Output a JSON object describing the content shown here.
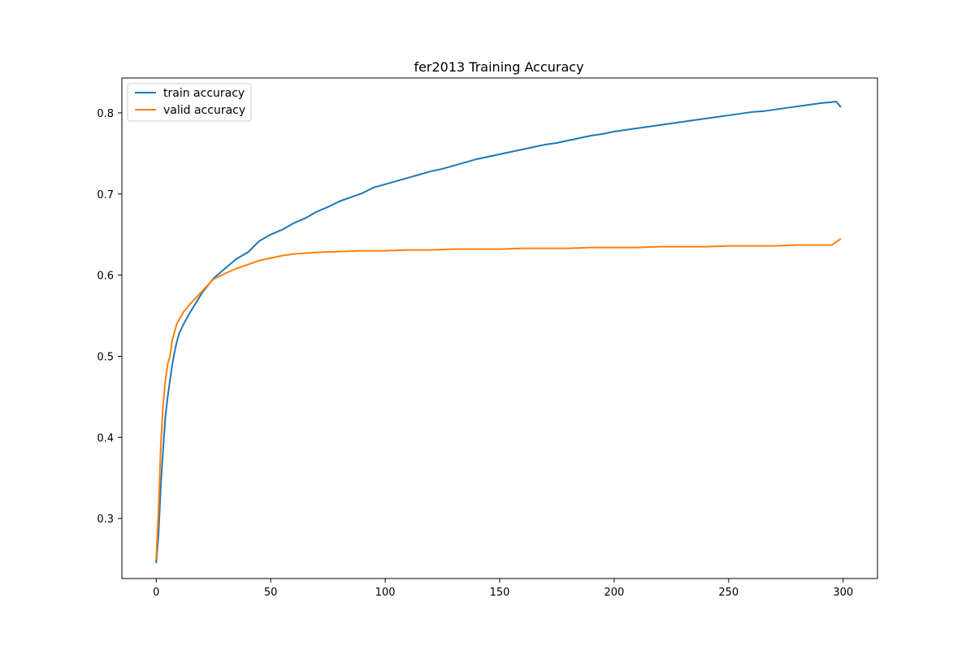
{
  "chart_data": {
    "type": "line",
    "title": "fer2013 Training Accuracy",
    "xlabel": "",
    "ylabel": "",
    "xlim": [
      -15,
      315
    ],
    "ylim": [
      0.226,
      0.843
    ],
    "xticks": [
      0,
      50,
      100,
      150,
      200,
      250,
      300
    ],
    "yticks": [
      0.3,
      0.4,
      0.5,
      0.6,
      0.7,
      0.8
    ],
    "legend_position": "upper-left",
    "grid": false,
    "series": [
      {
        "name": "train accuracy",
        "color": "#1f77b4",
        "points": [
          [
            0,
            0.245
          ],
          [
            1,
            0.28
          ],
          [
            2,
            0.34
          ],
          [
            3,
            0.385
          ],
          [
            4,
            0.425
          ],
          [
            5,
            0.45
          ],
          [
            6,
            0.47
          ],
          [
            7,
            0.49
          ],
          [
            8,
            0.505
          ],
          [
            9,
            0.518
          ],
          [
            10,
            0.528
          ],
          [
            12,
            0.54
          ],
          [
            15,
            0.555
          ],
          [
            20,
            0.578
          ],
          [
            25,
            0.596
          ],
          [
            30,
            0.608
          ],
          [
            35,
            0.62
          ],
          [
            40,
            0.628
          ],
          [
            45,
            0.642
          ],
          [
            50,
            0.65
          ],
          [
            55,
            0.656
          ],
          [
            60,
            0.664
          ],
          [
            65,
            0.67
          ],
          [
            70,
            0.678
          ],
          [
            75,
            0.684
          ],
          [
            80,
            0.691
          ],
          [
            85,
            0.696
          ],
          [
            90,
            0.701
          ],
          [
            95,
            0.708
          ],
          [
            100,
            0.712
          ],
          [
            105,
            0.716
          ],
          [
            110,
            0.72
          ],
          [
            115,
            0.724
          ],
          [
            120,
            0.728
          ],
          [
            125,
            0.731
          ],
          [
            130,
            0.735
          ],
          [
            135,
            0.739
          ],
          [
            140,
            0.743
          ],
          [
            145,
            0.746
          ],
          [
            150,
            0.749
          ],
          [
            155,
            0.752
          ],
          [
            160,
            0.755
          ],
          [
            165,
            0.758
          ],
          [
            170,
            0.761
          ],
          [
            175,
            0.763
          ],
          [
            180,
            0.766
          ],
          [
            185,
            0.769
          ],
          [
            190,
            0.772
          ],
          [
            195,
            0.774
          ],
          [
            200,
            0.777
          ],
          [
            205,
            0.779
          ],
          [
            210,
            0.781
          ],
          [
            215,
            0.783
          ],
          [
            220,
            0.785
          ],
          [
            225,
            0.787
          ],
          [
            230,
            0.789
          ],
          [
            235,
            0.791
          ],
          [
            240,
            0.793
          ],
          [
            245,
            0.795
          ],
          [
            250,
            0.797
          ],
          [
            255,
            0.799
          ],
          [
            260,
            0.801
          ],
          [
            265,
            0.802
          ],
          [
            270,
            0.804
          ],
          [
            275,
            0.806
          ],
          [
            280,
            0.808
          ],
          [
            285,
            0.81
          ],
          [
            290,
            0.812
          ],
          [
            294,
            0.813
          ],
          [
            297,
            0.814
          ],
          [
            299,
            0.807
          ]
        ]
      },
      {
        "name": "valid accuracy",
        "color": "#ff7f0e",
        "points": [
          [
            0,
            0.25
          ],
          [
            1,
            0.31
          ],
          [
            2,
            0.39
          ],
          [
            3,
            0.44
          ],
          [
            4,
            0.47
          ],
          [
            5,
            0.49
          ],
          [
            6,
            0.5
          ],
          [
            7,
            0.52
          ],
          [
            8,
            0.53
          ],
          [
            9,
            0.54
          ],
          [
            10,
            0.545
          ],
          [
            12,
            0.555
          ],
          [
            15,
            0.565
          ],
          [
            20,
            0.58
          ],
          [
            25,
            0.595
          ],
          [
            30,
            0.602
          ],
          [
            35,
            0.608
          ],
          [
            40,
            0.613
          ],
          [
            45,
            0.618
          ],
          [
            50,
            0.621
          ],
          [
            55,
            0.624
          ],
          [
            60,
            0.626
          ],
          [
            65,
            0.627
          ],
          [
            70,
            0.628
          ],
          [
            80,
            0.629
          ],
          [
            90,
            0.63
          ],
          [
            100,
            0.63
          ],
          [
            110,
            0.631
          ],
          [
            120,
            0.631
          ],
          [
            130,
            0.632
          ],
          [
            140,
            0.632
          ],
          [
            150,
            0.632
          ],
          [
            160,
            0.633
          ],
          [
            170,
            0.633
          ],
          [
            180,
            0.633
          ],
          [
            190,
            0.634
          ],
          [
            200,
            0.634
          ],
          [
            210,
            0.634
          ],
          [
            220,
            0.635
          ],
          [
            230,
            0.635
          ],
          [
            240,
            0.635
          ],
          [
            250,
            0.636
          ],
          [
            260,
            0.636
          ],
          [
            270,
            0.636
          ],
          [
            280,
            0.637
          ],
          [
            290,
            0.637
          ],
          [
            295,
            0.637
          ],
          [
            299,
            0.645
          ]
        ]
      }
    ]
  }
}
